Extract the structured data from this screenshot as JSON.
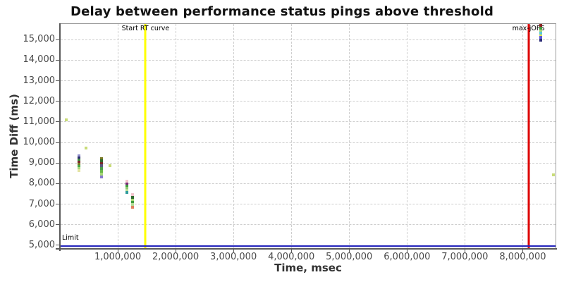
{
  "chart_data": {
    "type": "scatter",
    "title": "Delay between performance status pings above threshold",
    "xlabel": "Time, msec",
    "ylabel": "Time Diff (ms)",
    "xlim": [
      0,
      8580000
    ],
    "ylim": [
      4810,
      15780
    ],
    "grid": "dashed-lightgray",
    "legend": "none",
    "x_ticks": [
      {
        "value": 1000000,
        "label": "1,000,000"
      },
      {
        "value": 2000000,
        "label": "2,000,000"
      },
      {
        "value": 3000000,
        "label": "3,000,000"
      },
      {
        "value": 4000000,
        "label": "4,000,000"
      },
      {
        "value": 5000000,
        "label": "5,000,000"
      },
      {
        "value": 6000000,
        "label": "6,000,000"
      },
      {
        "value": 7000000,
        "label": "7,000,000"
      },
      {
        "value": 8000000,
        "label": "8,000,000"
      }
    ],
    "y_ticks": [
      {
        "value": 5000,
        "label": "5,000",
        "gridline": false
      },
      {
        "value": 6000,
        "label": "6,000",
        "gridline": true
      },
      {
        "value": 7000,
        "label": "7,000",
        "gridline": true
      },
      {
        "value": 8000,
        "label": "8,000",
        "gridline": true
      },
      {
        "value": 9000,
        "label": "9,000",
        "gridline": true
      },
      {
        "value": 10000,
        "label": "10,000",
        "gridline": true
      },
      {
        "value": 11000,
        "label": "11,000",
        "gridline": true
      },
      {
        "value": 12000,
        "label": "12,000",
        "gridline": true
      },
      {
        "value": 13000,
        "label": "13,000",
        "gridline": true
      },
      {
        "value": 14000,
        "label": "14,000",
        "gridline": true
      },
      {
        "value": 15000,
        "label": "15,000",
        "gridline": true
      }
    ],
    "annotations": {
      "vlines": [
        {
          "label": "Start RT curve",
          "x": 1480000,
          "color": "#ffff00"
        },
        {
          "label": "max-jOPS",
          "x": 8100000,
          "color": "#dd0000"
        }
      ],
      "hlines": [
        {
          "label": "Limit",
          "y": 4950,
          "color": "#2424bb"
        }
      ]
    },
    "points": [
      {
        "x": 110000,
        "y": 11080,
        "color": "#c8dc78"
      },
      {
        "x": 330000,
        "y": 9330,
        "color": "#9090cc"
      },
      {
        "x": 330000,
        "y": 9230,
        "color": "#2e2e6e"
      },
      {
        "x": 330000,
        "y": 9130,
        "color": "#3f8b3f"
      },
      {
        "x": 330000,
        "y": 9030,
        "color": "#7a2a2a"
      },
      {
        "x": 330000,
        "y": 8920,
        "color": "#7a7a28"
      },
      {
        "x": 330000,
        "y": 8820,
        "color": "#4aa84a"
      },
      {
        "x": 330000,
        "y": 8720,
        "color": "#a8d878"
      },
      {
        "x": 330000,
        "y": 8610,
        "color": "#e4e4a4"
      },
      {
        "x": 445000,
        "y": 9710,
        "color": "#c8dc78"
      },
      {
        "x": 720000,
        "y": 9215,
        "color": "#7a7a28"
      },
      {
        "x": 720000,
        "y": 9100,
        "color": "#2f6b2f"
      },
      {
        "x": 720000,
        "y": 8960,
        "color": "#7a2a2a"
      },
      {
        "x": 720000,
        "y": 8840,
        "color": "#5a5a80"
      },
      {
        "x": 720000,
        "y": 8720,
        "color": "#4aa04a"
      },
      {
        "x": 720000,
        "y": 8580,
        "color": "#6ab84a"
      },
      {
        "x": 720000,
        "y": 8440,
        "color": "#a8d878"
      },
      {
        "x": 720000,
        "y": 8300,
        "color": "#8878d0"
      },
      {
        "x": 860000,
        "y": 8840,
        "color": "#c8dc78"
      },
      {
        "x": 1160000,
        "y": 8100,
        "color": "#f2c4cc"
      },
      {
        "x": 1160000,
        "y": 7960,
        "color": "#7a2a7a"
      },
      {
        "x": 1160000,
        "y": 7860,
        "color": "#3f9b3f"
      },
      {
        "x": 1160000,
        "y": 7760,
        "color": "#8cc86c"
      },
      {
        "x": 1160000,
        "y": 7650,
        "color": "#b4dc94"
      },
      {
        "x": 1160000,
        "y": 7550,
        "color": "#2f9b9b"
      },
      {
        "x": 1250000,
        "y": 7450,
        "color": "#f2c4cc"
      },
      {
        "x": 1250000,
        "y": 7310,
        "color": "#2f6b2f"
      },
      {
        "x": 1250000,
        "y": 7170,
        "color": "#a8d878"
      },
      {
        "x": 1250000,
        "y": 7070,
        "color": "#3f9b3f"
      },
      {
        "x": 1250000,
        "y": 6970,
        "color": "#b4dc94"
      },
      {
        "x": 1250000,
        "y": 6830,
        "color": "#e08060"
      },
      {
        "x": 8310000,
        "y": 15680,
        "color": "#8b2424"
      },
      {
        "x": 8310000,
        "y": 15540,
        "color": "#3f9b3f"
      },
      {
        "x": 8310000,
        "y": 15420,
        "color": "#a8d878"
      },
      {
        "x": 8310000,
        "y": 15300,
        "color": "#58c8d8"
      },
      {
        "x": 8310000,
        "y": 15180,
        "color": "#e8e448"
      },
      {
        "x": 8310000,
        "y": 15080,
        "color": "#5858d8"
      },
      {
        "x": 8310000,
        "y": 14960,
        "color": "#2e2e78"
      },
      {
        "x": 8530000,
        "y": 8400,
        "color": "#c8dc78"
      }
    ]
  }
}
